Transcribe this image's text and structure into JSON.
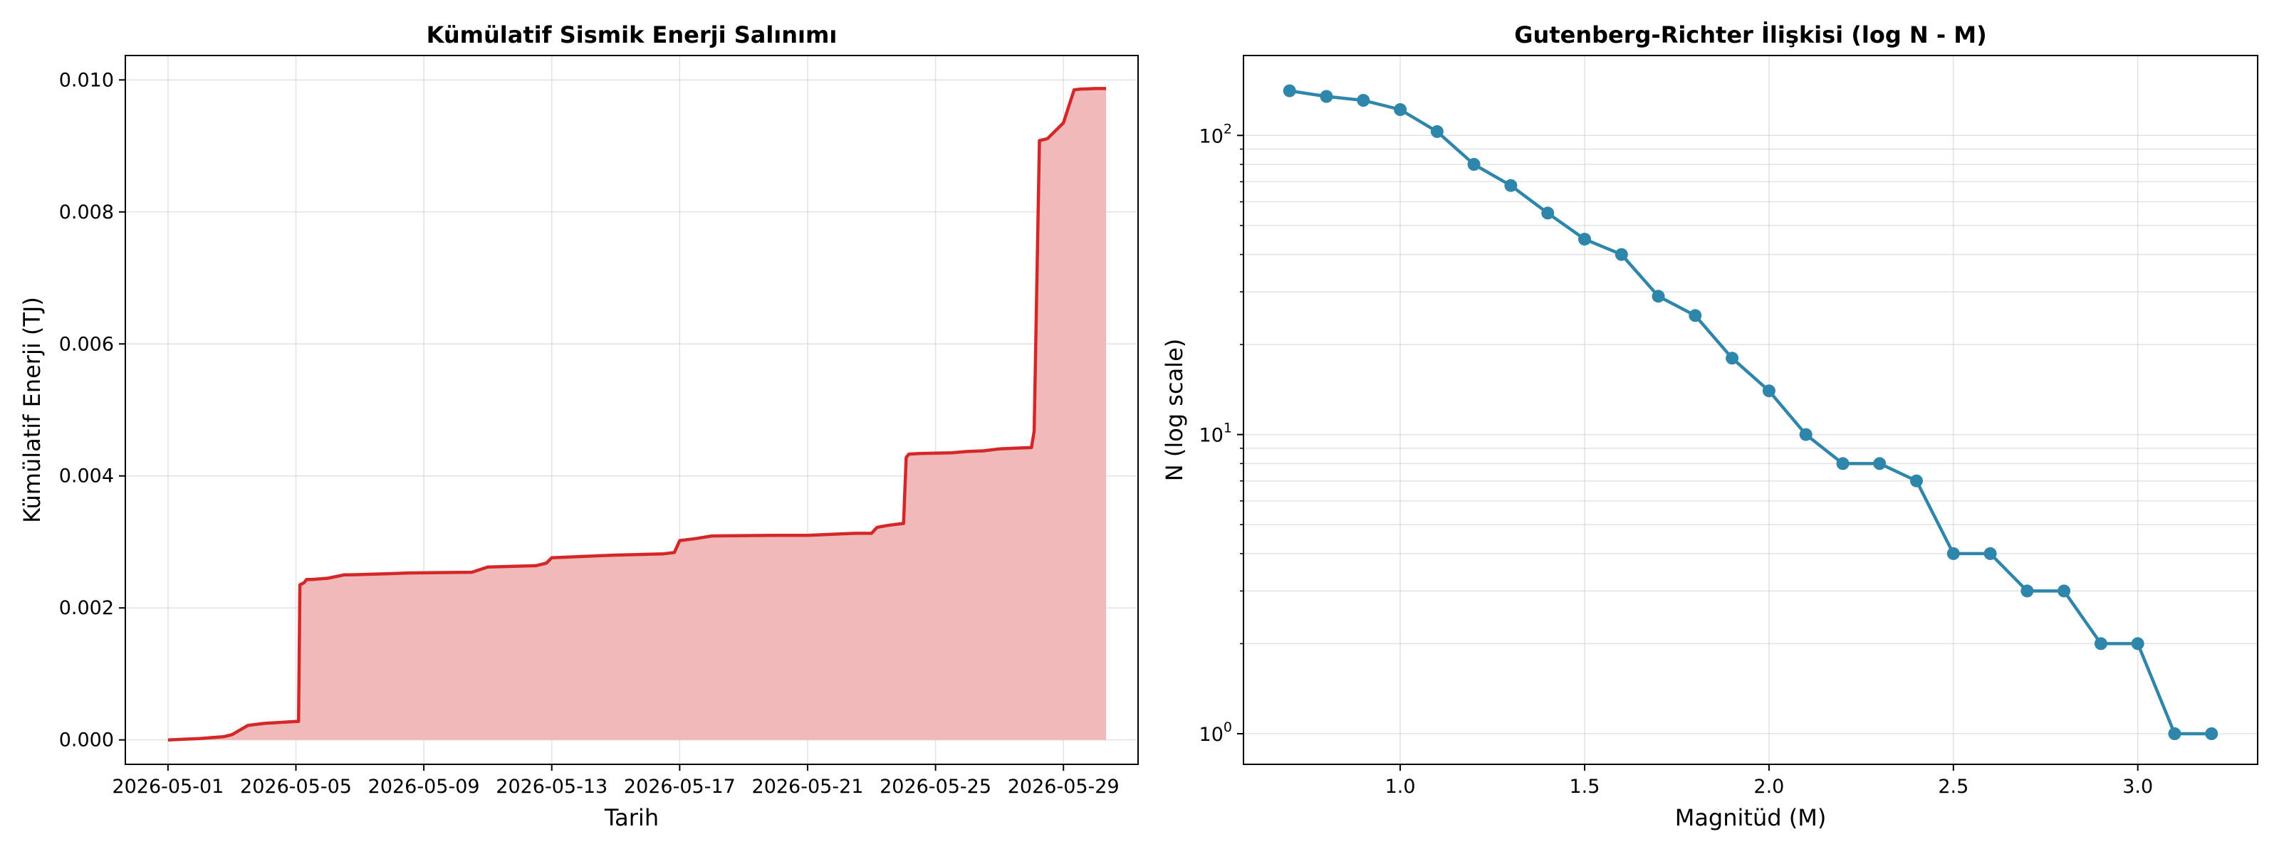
{
  "chart_data": [
    {
      "type": "area",
      "title": "Kümülatif Sismik Enerji Salınımı",
      "xlabel": "Tarih",
      "ylabel": "Kümülatif Enerji (TJ)",
      "x_ticks": [
        "2026-05-01",
        "2026-05-05",
        "2026-05-09",
        "2026-05-13",
        "2026-05-17",
        "2026-05-21",
        "2026-05-25",
        "2026-05-29"
      ],
      "y_ticks": [
        "0.000",
        "0.002",
        "0.004",
        "0.006",
        "0.008",
        "0.010"
      ],
      "xlim": [
        "2026-04-29T16:00",
        "2026-05-31T08:00"
      ],
      "ylim": [
        -0.00037,
        0.01037
      ],
      "grid": true,
      "line_color": "#d62728",
      "fill_color": "#f0b9ba",
      "series": [
        {
          "x": [
            "2026-05-01T00:00",
            "2026-05-02T00:00",
            "2026-05-02T18:00",
            "2026-05-03T00:00",
            "2026-05-03T06:00",
            "2026-05-03T12:00",
            "2026-05-04T00:00",
            "2026-05-05T00:00",
            "2026-05-05T02:00",
            "2026-05-05T03:00",
            "2026-05-05T06:00",
            "2026-05-05T08:00",
            "2026-05-05T12:00",
            "2026-05-06T00:00",
            "2026-05-06T12:00",
            "2026-05-06T16:00",
            "2026-05-08T00:00",
            "2026-05-08T12:00",
            "2026-05-10T12:00",
            "2026-05-11T00:00",
            "2026-05-12T12:00",
            "2026-05-12T20:00",
            "2026-05-13T00:00",
            "2026-05-14T12:00",
            "2026-05-15T00:00",
            "2026-05-16T12:00",
            "2026-05-16T20:00",
            "2026-05-17T00:00",
            "2026-05-17T12:00",
            "2026-05-18T00:00",
            "2026-05-20T00:00",
            "2026-05-21T00:00",
            "2026-05-22T00:00",
            "2026-05-22T12:00",
            "2026-05-23T00:00",
            "2026-05-23T04:00",
            "2026-05-23T12:00",
            "2026-05-23T20:00",
            "2026-05-24T00:00",
            "2026-05-24T02:00",
            "2026-05-24T04:00",
            "2026-05-24T12:00",
            "2026-05-25T12:00",
            "2026-05-26T00:00",
            "2026-05-26T12:00",
            "2026-05-27T00:00",
            "2026-05-27T12:00",
            "2026-05-28T00:00",
            "2026-05-28T02:00",
            "2026-05-28T06:00",
            "2026-05-28T12:00",
            "2026-05-29T00:00",
            "2026-05-29T08:00",
            "2026-05-29T12:00",
            "2026-05-30T00:00",
            "2026-05-30T08:00"
          ],
          "y": [
            0.0,
            2e-05,
            5e-05,
            8e-05,
            0.00015,
            0.00022,
            0.00025,
            0.00028,
            0.00028,
            0.00235,
            0.00238,
            0.00243,
            0.00243,
            0.00245,
            0.0025,
            0.0025,
            0.00252,
            0.00253,
            0.00254,
            0.00262,
            0.00264,
            0.00268,
            0.00276,
            0.00279,
            0.0028,
            0.00282,
            0.00284,
            0.00302,
            0.00305,
            0.00309,
            0.0031,
            0.0031,
            0.00312,
            0.00313,
            0.00313,
            0.00322,
            0.00325,
            0.00327,
            0.00328,
            0.00428,
            0.00433,
            0.00434,
            0.00435,
            0.00437,
            0.00438,
            0.00441,
            0.00442,
            0.00443,
            0.00468,
            0.00908,
            0.00911,
            0.00935,
            0.00985,
            0.00986,
            0.00987,
            0.00987
          ]
        }
      ]
    },
    {
      "type": "line",
      "title": "Gutenberg-Richter İlişkisi (log N - M)",
      "xlabel": "Magnitüd (M)",
      "ylabel": "N (log scale)",
      "y_scale": "log",
      "x_ticks": [
        "1.0",
        "1.5",
        "2.0",
        "2.5",
        "3.0"
      ],
      "y_ticks": [
        {
          "base": "10",
          "exp": "0"
        },
        {
          "base": "10",
          "exp": "1"
        },
        {
          "base": "10",
          "exp": "2"
        }
      ],
      "xlim": [
        0.575,
        3.325
      ],
      "ylim": [
        0.79,
        185
      ],
      "grid": true,
      "line_color": "#2e86ab",
      "series": [
        {
          "x": [
            0.7,
            0.8,
            0.9,
            1.0,
            1.1,
            1.2,
            1.3,
            1.4,
            1.5,
            1.6,
            1.7,
            1.8,
            1.9,
            2.0,
            2.1,
            2.2,
            2.3,
            2.4,
            2.5,
            2.6,
            2.7,
            2.8,
            2.9,
            3.0,
            3.1,
            3.2
          ],
          "y": [
            141,
            135,
            131,
            122,
            103,
            80,
            68,
            55,
            45,
            40,
            29,
            25,
            18,
            14,
            10,
            8,
            8,
            7,
            4,
            4,
            3,
            3,
            2,
            2,
            1,
            1
          ]
        }
      ]
    }
  ]
}
